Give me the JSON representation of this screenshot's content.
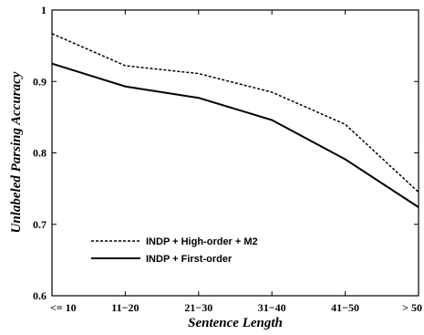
{
  "chart_data": {
    "type": "line",
    "title": "",
    "xlabel": "Sentence Length",
    "ylabel": "Unlabeled Parsing Accuracy",
    "categories": [
      "<= 10",
      "11−20",
      "21−30",
      "31−40",
      "41−50",
      "> 50"
    ],
    "ylim": [
      0.6,
      1.0
    ],
    "yticks": [
      0.6,
      0.7,
      0.8,
      0.9,
      1.0
    ],
    "ytick_labels": [
      "0.6",
      "0.7",
      "0.8",
      "0.9",
      "1"
    ],
    "grid": false,
    "legend_position": "bottom-left",
    "series": [
      {
        "name": "INDP + High-order + M2",
        "style": "dashed",
        "color": "#000000",
        "values": [
          0.967,
          0.922,
          0.911,
          0.885,
          0.84,
          0.745
        ]
      },
      {
        "name": "INDP + First-order",
        "style": "solid",
        "color": "#000000",
        "values": [
          0.925,
          0.893,
          0.877,
          0.846,
          0.791,
          0.724
        ]
      }
    ]
  }
}
